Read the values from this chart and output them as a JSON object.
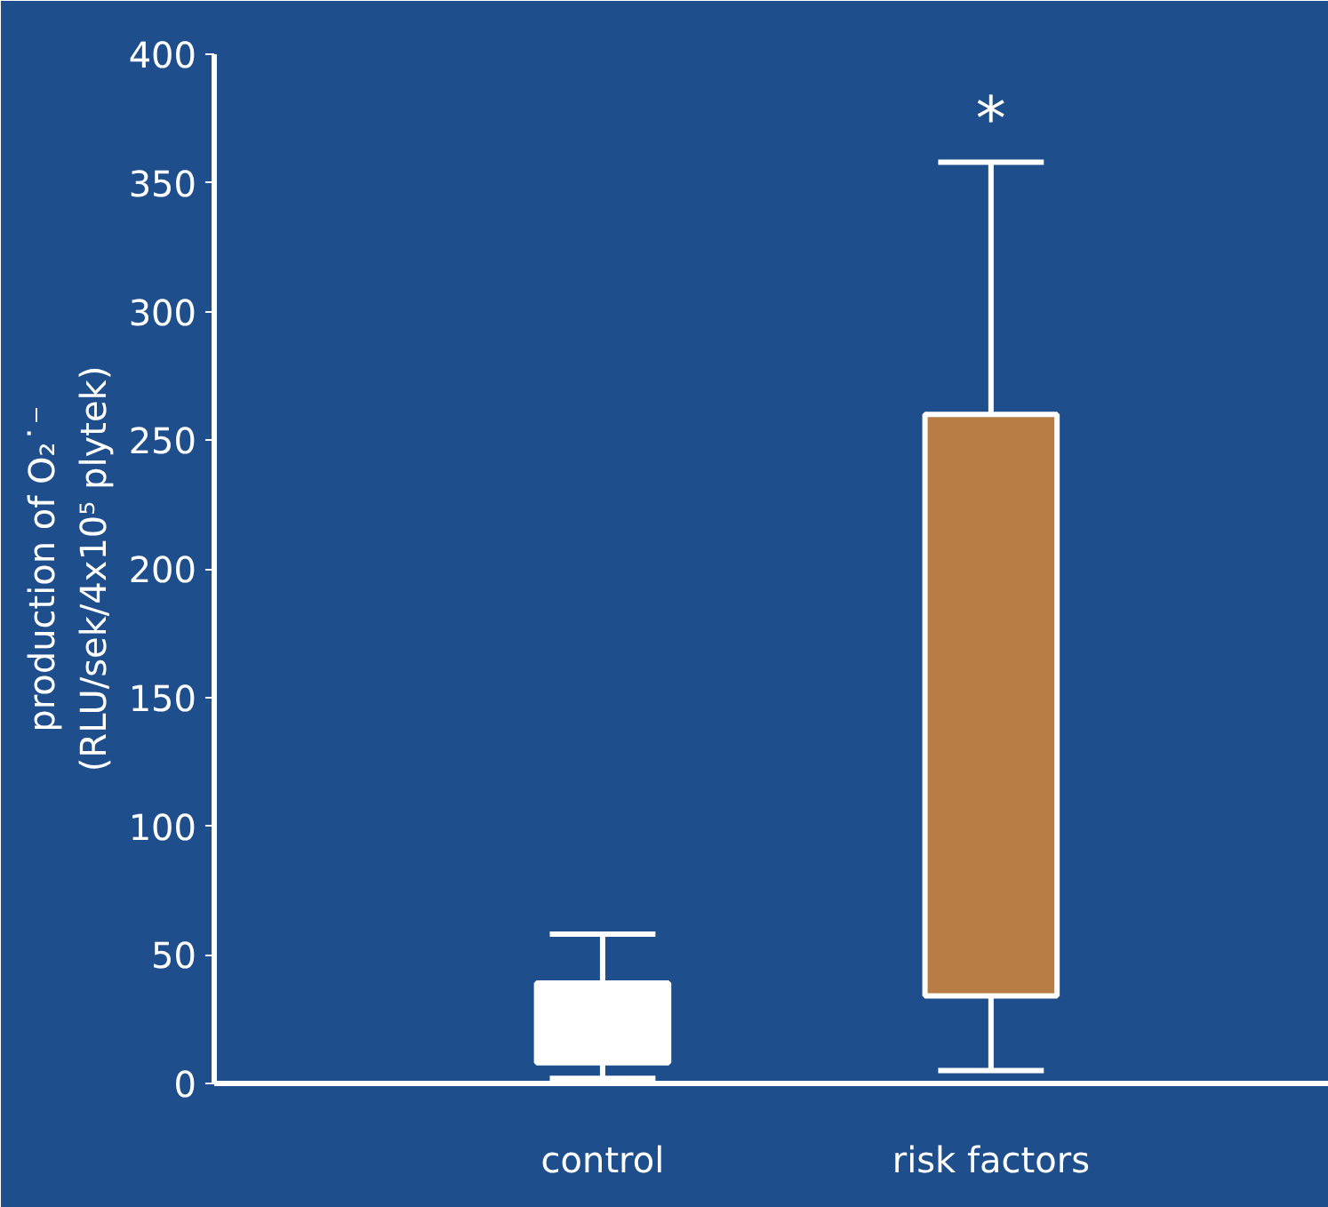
{
  "chart_data": {
    "type": "box",
    "ylabel": "production of O₂˙⁻\n(RLU/sek/4x10⁵ plytek)",
    "categories": [
      "control",
      "risk factors"
    ],
    "boxes": [
      {
        "low": 2,
        "q1": 8,
        "q3": 39,
        "high": 58
      },
      {
        "low": 5,
        "q1": 34,
        "q3": 260,
        "high": 358
      }
    ],
    "colors": [
      "#ffffff",
      "#b87d45"
    ],
    "ylim": [
      0,
      400
    ],
    "yticks": [
      0,
      50,
      100,
      150,
      200,
      250,
      300,
      350,
      400
    ],
    "grid": false,
    "annotations": [
      "*"
    ]
  }
}
